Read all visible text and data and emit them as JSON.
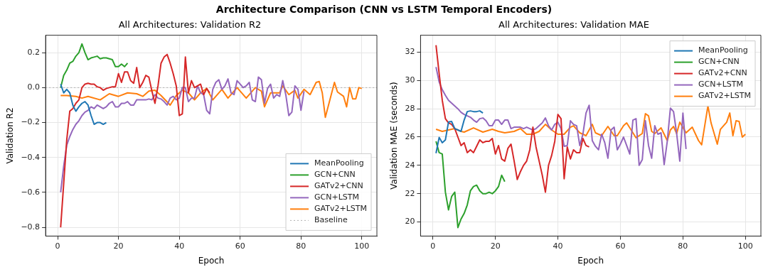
{
  "chart_data": [
    {
      "type": "other",
      "title": "Architecture Comparison (CNN vs LSTM Temporal Encoders)"
    },
    {
      "type": "line",
      "title": "All Architectures: Validation R2",
      "xlabel": "Epoch",
      "ylabel": "Validation R2",
      "xlim": [
        -3.95,
        104.95
      ],
      "xticks": [
        0,
        20,
        40,
        60,
        80,
        100
      ],
      "ylim": [
        -0.85,
        0.3
      ],
      "yticks": [
        {
          "value": -0.8,
          "label": "−0.8"
        },
        {
          "value": -0.6,
          "label": "−0.6"
        },
        {
          "value": -0.4,
          "label": "−0.4"
        },
        {
          "value": -0.2,
          "label": "−0.2"
        },
        {
          "value": 0,
          "label": "0.0"
        },
        {
          "value": 0.2,
          "label": "0.2"
        }
      ],
      "grid": true,
      "legend": "bottom right",
      "line_style": "solid",
      "ref_lines": [
        {
          "axis": "y",
          "value": 0,
          "label": "Baseline",
          "color": "#b0b0b0",
          "line_style": "dotted"
        }
      ],
      "series": [
        {
          "name": "MeanPooling",
          "color": "#1f77b4",
          "x": [
            1,
            2,
            3,
            4,
            5,
            6,
            7,
            8,
            9,
            10,
            11,
            12,
            13,
            14,
            15,
            16
          ],
          "values": [
            0.02,
            -0.03,
            -0.01,
            -0.03,
            -0.1,
            -0.135,
            -0.11,
            -0.09,
            -0.08,
            -0.1,
            -0.16,
            -0.21,
            -0.2,
            -0.2,
            -0.21,
            -0.2
          ]
        },
        {
          "name": "GCN+CNN",
          "color": "#2ca02c",
          "x": [
            1,
            2,
            3,
            4,
            5,
            6,
            7,
            8,
            9,
            10,
            11,
            12,
            13,
            14,
            15,
            16,
            17,
            18,
            19,
            20,
            21,
            22,
            23
          ],
          "values": [
            0.0,
            0.07,
            0.1,
            0.14,
            0.15,
            0.18,
            0.2,
            0.25,
            0.2,
            0.16,
            0.17,
            0.175,
            0.18,
            0.165,
            0.17,
            0.17,
            0.165,
            0.16,
            0.12,
            0.12,
            0.135,
            0.12,
            0.14
          ]
        },
        {
          "name": "GATv2+CNN",
          "color": "#d62728",
          "x": [
            1,
            2,
            3,
            4,
            5,
            6,
            7,
            8,
            9,
            10,
            11,
            12,
            13,
            14,
            15,
            16,
            17,
            18,
            19,
            20,
            21,
            22,
            23,
            24,
            25,
            26,
            27,
            28,
            29,
            30,
            31,
            32,
            33,
            34,
            35,
            36,
            37,
            38,
            39,
            40,
            41,
            42,
            43,
            44,
            45,
            46,
            47,
            48,
            49,
            50
          ],
          "values": [
            -0.8,
            -0.55,
            -0.3,
            -0.135,
            -0.12,
            -0.09,
            -0.07,
            0.0,
            0.02,
            0.025,
            0.02,
            0.02,
            0.005,
            0.0,
            -0.015,
            -0.005,
            0.0,
            0.005,
            0.005,
            0.08,
            0.03,
            0.09,
            0.09,
            0.04,
            0.025,
            0.115,
            0.0,
            0.03,
            0.07,
            0.06,
            -0.02,
            -0.09,
            0.01,
            0.14,
            0.175,
            0.19,
            0.14,
            0.08,
            0.01,
            -0.16,
            -0.15,
            0.175,
            -0.03,
            0.04,
            0.0,
            0.01,
            0.02,
            -0.04,
            -0.005,
            -0.03
          ]
        },
        {
          "name": "GCN+LSTM",
          "color": "#9467bd",
          "x": [
            1,
            2,
            3,
            4,
            5,
            6,
            7,
            8,
            9,
            10,
            11,
            12,
            13,
            14,
            15,
            16,
            17,
            18,
            19,
            20,
            21,
            22,
            23,
            24,
            25,
            26,
            27,
            28,
            29,
            30,
            31,
            32,
            33,
            34,
            35,
            36,
            37,
            38,
            39,
            40,
            41,
            42,
            43,
            44,
            45,
            46,
            47,
            48,
            49,
            50,
            51,
            52,
            53,
            54,
            55,
            56,
            57,
            58,
            59,
            60,
            61,
            62,
            63,
            64,
            65,
            66,
            67,
            68,
            69,
            70,
            71,
            72,
            73,
            74,
            75,
            76,
            77,
            78,
            79,
            80,
            81
          ],
          "values": [
            -0.6,
            -0.45,
            -0.33,
            -0.28,
            -0.24,
            -0.21,
            -0.19,
            -0.16,
            -0.14,
            -0.13,
            -0.11,
            -0.12,
            -0.1,
            -0.11,
            -0.12,
            -0.11,
            -0.09,
            -0.08,
            -0.11,
            -0.11,
            -0.09,
            -0.09,
            -0.08,
            -0.1,
            -0.1,
            -0.07,
            -0.07,
            -0.07,
            -0.07,
            -0.065,
            -0.07,
            -0.04,
            -0.06,
            -0.065,
            -0.08,
            -0.1,
            -0.06,
            -0.05,
            -0.07,
            -0.06,
            0.0,
            0.0,
            -0.08,
            -0.06,
            -0.06,
            0.01,
            -0.03,
            -0.04,
            -0.13,
            -0.15,
            -0.01,
            0.03,
            0.045,
            -0.01,
            0.01,
            0.05,
            -0.03,
            -0.04,
            0.04,
            0.02,
            0.0,
            0.01,
            0.03,
            -0.07,
            -0.08,
            0.06,
            0.045,
            -0.09,
            -0.005,
            0.02,
            -0.06,
            -0.04,
            -0.05,
            0.04,
            -0.04,
            -0.16,
            -0.14,
            0.01,
            -0.01,
            -0.13,
            -0.02
          ]
        },
        {
          "name": "GATv2+LSTM",
          "color": "#ff7f0e",
          "x": [
            1,
            3,
            6,
            8,
            10,
            14,
            17,
            20,
            23,
            26,
            28,
            30,
            32,
            34,
            37,
            39,
            41,
            43,
            45,
            47,
            49,
            51,
            54,
            56,
            59,
            62,
            65,
            67,
            68,
            70,
            73,
            74,
            76,
            78,
            79,
            81,
            83,
            85,
            86,
            87,
            88,
            91,
            92,
            94,
            95,
            96,
            97,
            98,
            99,
            100
          ],
          "values": [
            -0.045,
            -0.045,
            -0.05,
            -0.06,
            -0.05,
            -0.07,
            -0.035,
            -0.05,
            -0.03,
            -0.035,
            -0.05,
            -0.02,
            -0.015,
            -0.045,
            -0.1,
            -0.045,
            -0.015,
            -0.03,
            -0.07,
            -0.03,
            -0.005,
            -0.07,
            -0.01,
            -0.06,
            0.0,
            -0.06,
            0.0,
            -0.02,
            -0.11,
            -0.03,
            -0.03,
            0.01,
            -0.04,
            -0.015,
            -0.06,
            -0.01,
            -0.04,
            0.03,
            0.035,
            -0.03,
            -0.17,
            0.03,
            -0.025,
            -0.05,
            -0.11,
            0.0,
            -0.065,
            -0.065,
            0.0,
            -0.005
          ]
        }
      ]
    },
    {
      "type": "line",
      "title": "All Architectures: Validation MAE",
      "xlabel": "Epoch",
      "ylabel": "Validation MAE (seconds)",
      "xlim": [
        -3.95,
        104.95
      ],
      "xticks": [
        0,
        20,
        40,
        60,
        80,
        100
      ],
      "ylim": [
        19,
        33.2
      ],
      "yticks": [
        20,
        22,
        24,
        26,
        28,
        30,
        32
      ],
      "grid": true,
      "legend": "top right",
      "line_style": "solid",
      "series": [
        {
          "name": "MeanPooling",
          "color": "#1f77b4",
          "x": [
            1,
            2,
            3,
            4,
            5,
            6,
            7,
            8,
            9,
            10,
            11,
            12,
            13,
            14,
            15,
            16
          ],
          "values": [
            24.86,
            25.97,
            25.6,
            25.8,
            27.07,
            27.1,
            26.6,
            26.5,
            26.4,
            27.2,
            27.8,
            27.85,
            27.8,
            27.8,
            27.85,
            27.7
          ]
        },
        {
          "name": "GCN+CNN",
          "color": "#2ca02c",
          "x": [
            1,
            2,
            3,
            4,
            5,
            6,
            7,
            8,
            9,
            10,
            11,
            12,
            13,
            14,
            15,
            16,
            17,
            18,
            19,
            20,
            21,
            22,
            23
          ],
          "values": [
            25.7,
            24.9,
            24.8,
            22.1,
            20.85,
            21.8,
            22.1,
            19.6,
            20.2,
            20.6,
            21.2,
            22.2,
            22.5,
            22.6,
            22.2,
            22.0,
            22.0,
            22.1,
            22.0,
            22.2,
            22.5,
            23.3,
            22.85
          ]
        },
        {
          "name": "GATv2+CNN",
          "color": "#d62728",
          "x": [
            1,
            2,
            3,
            4,
            5,
            6,
            7,
            8,
            9,
            10,
            11,
            12,
            13,
            14,
            15,
            16,
            17,
            18,
            19,
            20,
            21,
            22,
            23,
            24,
            25,
            26,
            27,
            28,
            29,
            30,
            31,
            32,
            33,
            34,
            35,
            36,
            37,
            38,
            39,
            40,
            41,
            42,
            43,
            44,
            45,
            46,
            47,
            48,
            49,
            50
          ],
          "values": [
            32.5,
            30.5,
            28.6,
            27.3,
            27.0,
            26.9,
            26.6,
            26.0,
            25.4,
            25.6,
            24.9,
            25.1,
            24.9,
            25.35,
            25.8,
            25.6,
            25.7,
            25.7,
            25.9,
            24.8,
            25.4,
            24.45,
            24.3,
            25.2,
            25.5,
            24.3,
            23.0,
            23.55,
            24.0,
            24.3,
            25.1,
            26.7,
            25.3,
            24.3,
            23.3,
            22.1,
            24.0,
            24.7,
            25.7,
            27.6,
            27.3,
            23.05,
            25.3,
            24.45,
            25.1,
            24.9,
            24.9,
            25.9,
            25.4,
            25.3
          ]
        },
        {
          "name": "GCN+LSTM",
          "color": "#9467bd",
          "x": [
            1,
            2,
            3,
            4,
            5,
            6,
            7,
            8,
            9,
            10,
            11,
            12,
            13,
            14,
            15,
            16,
            17,
            18,
            19,
            20,
            21,
            22,
            23,
            24,
            25,
            26,
            27,
            28,
            29,
            30,
            31,
            32,
            33,
            34,
            35,
            36,
            37,
            38,
            39,
            40,
            41,
            42,
            43,
            44,
            45,
            46,
            47,
            48,
            49,
            50,
            51,
            52,
            53,
            54,
            55,
            56,
            57,
            58,
            59,
            60,
            61,
            62,
            63,
            64,
            65,
            66,
            67,
            68,
            69,
            70,
            71,
            72,
            73,
            74,
            75,
            76,
            77,
            78,
            79,
            80,
            81
          ],
          "values": [
            30.95,
            29.9,
            29.35,
            28.95,
            28.6,
            28.4,
            28.2,
            28.0,
            27.75,
            27.6,
            27.5,
            27.4,
            27.2,
            27.05,
            27.3,
            27.35,
            27.15,
            26.8,
            26.8,
            27.2,
            27.2,
            26.9,
            27.2,
            27.2,
            26.6,
            26.7,
            26.7,
            26.7,
            26.6,
            26.7,
            26.6,
            26.5,
            26.6,
            26.8,
            27.0,
            27.35,
            26.8,
            26.5,
            26.9,
            27.05,
            26.6,
            25.35,
            25.4,
            27.15,
            26.9,
            26.8,
            25.4,
            26.2,
            27.7,
            28.25,
            25.75,
            25.35,
            25.1,
            26.2,
            25.6,
            24.5,
            26.5,
            26.7,
            25.1,
            25.5,
            26.0,
            25.4,
            24.8,
            27.2,
            27.3,
            24.0,
            24.4,
            27.15,
            25.4,
            24.5,
            26.8,
            26.2,
            26.3,
            24.05,
            25.7,
            28.05,
            27.8,
            26.25,
            24.3,
            27.7,
            25.15
          ]
        },
        {
          "name": "GATv2+LSTM",
          "color": "#ff7f0e",
          "x": [
            1,
            3,
            5,
            7,
            9,
            10,
            13,
            16,
            19,
            21,
            23,
            26,
            28,
            30,
            32,
            34,
            36,
            38,
            40,
            42,
            44,
            45,
            47,
            49,
            51,
            52,
            54,
            56,
            58,
            59,
            61,
            62,
            64,
            65,
            67,
            68,
            69,
            70,
            71,
            73,
            75,
            76,
            77,
            78,
            79,
            81,
            83,
            85,
            86,
            88,
            89,
            91,
            92,
            94,
            95,
            96,
            97,
            98,
            99,
            100
          ],
          "values": [
            26.55,
            26.4,
            26.5,
            26.6,
            26.4,
            26.35,
            26.65,
            26.35,
            26.55,
            26.4,
            26.3,
            26.4,
            26.6,
            26.2,
            26.2,
            26.4,
            26.9,
            26.5,
            26.2,
            26.2,
            26.7,
            26.8,
            26.3,
            26.1,
            26.9,
            26.3,
            26.1,
            26.75,
            26.1,
            26.1,
            26.8,
            27.0,
            26.3,
            25.95,
            26.25,
            27.65,
            27.5,
            26.4,
            26.25,
            26.65,
            25.75,
            26.5,
            26.75,
            26.25,
            27.05,
            26.3,
            26.7,
            25.75,
            25.45,
            28.2,
            27.0,
            25.5,
            26.55,
            27.05,
            27.7,
            26.1,
            27.15,
            27.1,
            26.0,
            26.2
          ]
        }
      ]
    }
  ]
}
